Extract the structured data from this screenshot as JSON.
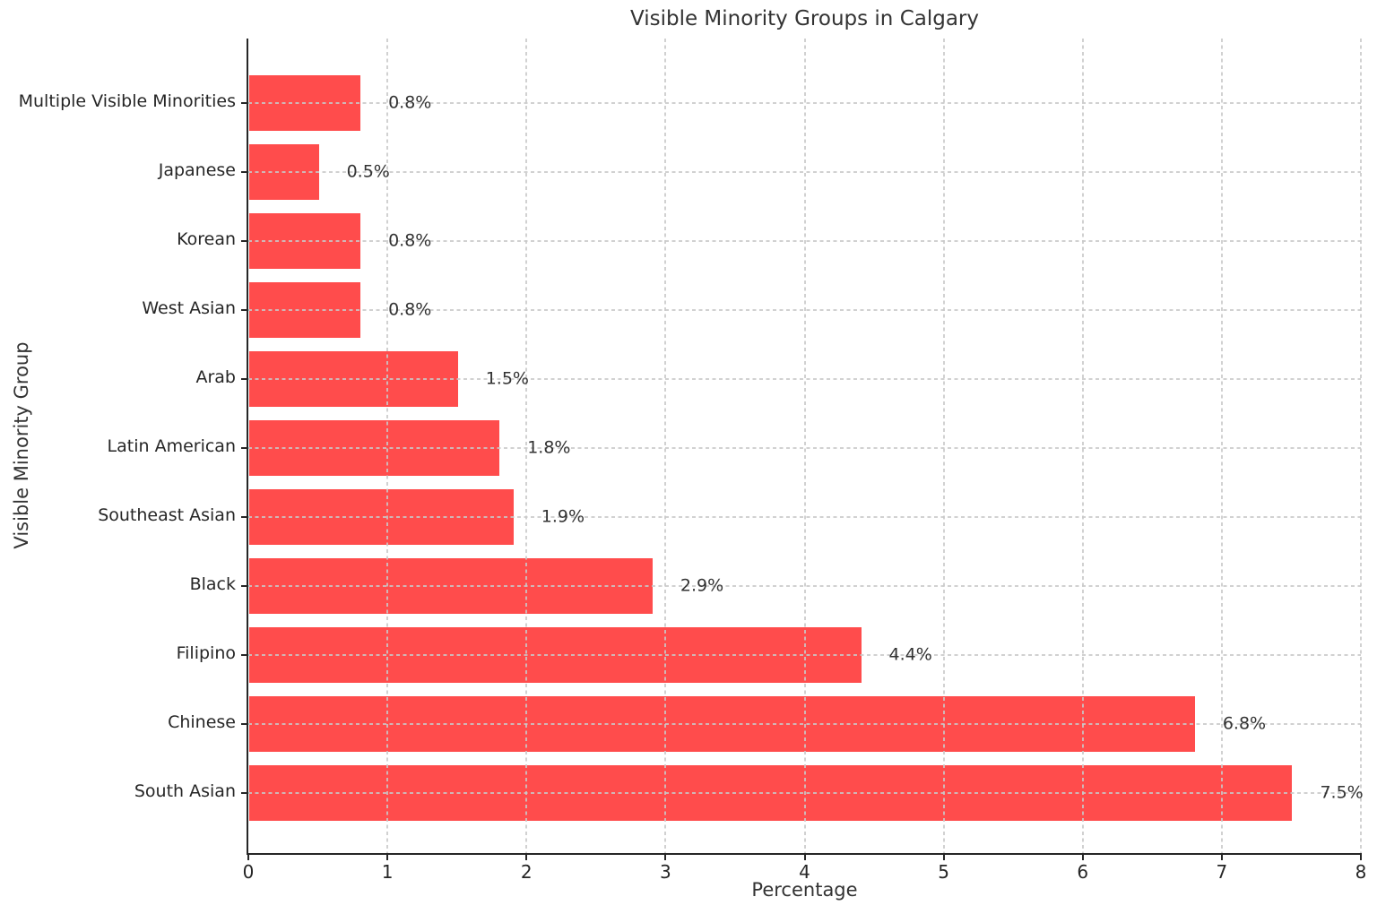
{
  "chart_data": {
    "type": "bar",
    "orientation": "horizontal",
    "title": "Visible Minority Groups in Calgary",
    "xlabel": "Percentage",
    "ylabel": "Visible Minority Group",
    "categories": [
      "Multiple Visible Minorities",
      "Japanese",
      "Korean",
      "West Asian",
      "Arab",
      "Latin American",
      "Southeast Asian",
      "Black",
      "Filipino",
      "Chinese",
      "South Asian"
    ],
    "values": [
      0.8,
      0.5,
      0.8,
      0.8,
      1.5,
      1.8,
      1.9,
      2.9,
      4.4,
      6.8,
      7.5
    ],
    "value_labels": [
      "0.8%",
      "0.5%",
      "0.8%",
      "0.8%",
      "1.5%",
      "1.8%",
      "1.9%",
      "2.9%",
      "4.4%",
      "6.8%",
      "7.5%"
    ],
    "xlim": [
      0,
      8
    ],
    "xticks": [
      "0",
      "1",
      "2",
      "3",
      "4",
      "5",
      "6",
      "7",
      "8"
    ],
    "bar_color": "#FF4C4C",
    "grid_color": "#c9c9c9",
    "grid_style": "dashed",
    "spine_color": "#262626",
    "legend": "none"
  }
}
